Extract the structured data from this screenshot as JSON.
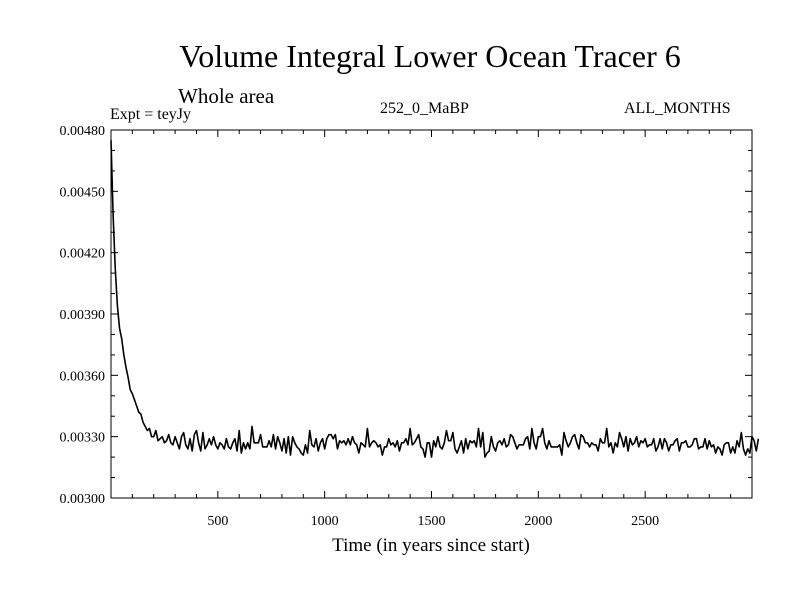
{
  "title": "Volume Integral Lower Ocean Tracer 6",
  "subtitle": "Whole area",
  "experiment": "Expt = teyJy",
  "period": "252_0_MaBP",
  "months": "ALL_MONTHS",
  "chart_data": {
    "type": "line",
    "title": "Volume Integral Lower Ocean Tracer 6",
    "xlabel": "Time (in years since start)",
    "ylabel": "",
    "xlim": [
      0,
      3000
    ],
    "ylim": [
      0.003,
      0.0048
    ],
    "x_ticks": [
      500,
      1000,
      1500,
      2000,
      2500
    ],
    "x_tick_labels": [
      "500",
      "1000",
      "1500",
      "2000",
      "2500"
    ],
    "y_ticks": [
      0.003,
      0.0033,
      0.0036,
      0.0039,
      0.0042,
      0.0045,
      0.0048
    ],
    "y_tick_labels": [
      "0.00300",
      "0.00330",
      "0.00360",
      "0.00390",
      "0.00420",
      "0.00450",
      "0.00480"
    ],
    "series": [
      {
        "name": "Lower Ocean Tracer 6",
        "step_years": 10,
        "values": [
          0.00475,
          0.00438,
          0.00412,
          0.00394,
          0.00383,
          0.00378,
          0.0037,
          0.00364,
          0.00359,
          0.00353,
          0.00351,
          0.00348,
          0.00345,
          0.00342,
          0.00341,
          0.00337,
          0.00335,
          0.00333,
          0.00334,
          0.0033,
          0.0033,
          0.00333,
          0.00328,
          0.00329,
          0.0033,
          0.00327,
          0.00328,
          0.00331,
          0.00327,
          0.00326,
          0.0033,
          0.00327,
          0.00324,
          0.0033,
          0.00332,
          0.00326,
          0.00324,
          0.00329,
          0.00323,
          0.00331,
          0.00333,
          0.00327,
          0.00323,
          0.00332,
          0.00324,
          0.00326,
          0.00329,
          0.00326,
          0.0033,
          0.00326,
          0.00324,
          0.00327,
          0.00326,
          0.00324,
          0.00329,
          0.00325,
          0.00324,
          0.00327,
          0.00329,
          0.00323,
          0.00333,
          0.00322,
          0.00327,
          0.00324,
          0.00327,
          0.00324,
          0.00335,
          0.00327,
          0.00327,
          0.00327,
          0.00331,
          0.00325,
          0.00325,
          0.00325,
          0.00328,
          0.00325,
          0.00331,
          0.00324,
          0.0033,
          0.00327,
          0.00323,
          0.00329,
          0.00322,
          0.0033,
          0.00321,
          0.0033,
          0.00327,
          0.00325,
          0.00324,
          0.00322,
          0.00321,
          0.00326,
          0.00322,
          0.00333,
          0.00326,
          0.00325,
          0.00329,
          0.00323,
          0.00327,
          0.00329,
          0.00324,
          0.00329,
          0.00331,
          0.00331,
          0.00329,
          0.00331,
          0.00324,
          0.00328,
          0.00327,
          0.00328,
          0.00326,
          0.00329,
          0.00326,
          0.0033,
          0.00327,
          0.00326,
          0.00322,
          0.00327,
          0.00326,
          0.00325,
          0.00334,
          0.00325,
          0.00327,
          0.00328,
          0.00327,
          0.00325,
          0.00326,
          0.00321,
          0.00325,
          0.00325,
          0.00329,
          0.00326,
          0.00327,
          0.00325,
          0.00328,
          0.00323,
          0.00327,
          0.00327,
          0.00329,
          0.00326,
          0.00334,
          0.00326,
          0.00327,
          0.00329,
          0.00331,
          0.00325,
          0.00324,
          0.0032,
          0.00327,
          0.00327,
          0.0032,
          0.00328,
          0.00325,
          0.0033,
          0.00325,
          0.00324,
          0.00327,
          0.00333,
          0.00328,
          0.00328,
          0.00332,
          0.00324,
          0.00322,
          0.00325,
          0.00328,
          0.00322,
          0.00329,
          0.00324,
          0.00328,
          0.00327,
          0.00328,
          0.00325,
          0.00334,
          0.00325,
          0.00332,
          0.0032,
          0.00322,
          0.00323,
          0.0033,
          0.00325,
          0.00323,
          0.00327,
          0.00328,
          0.00326,
          0.00329,
          0.00325,
          0.00326,
          0.00331,
          0.0033,
          0.00327,
          0.00324,
          0.00326,
          0.00326,
          0.00326,
          0.00329,
          0.0033,
          0.00324,
          0.00334,
          0.00327,
          0.00324,
          0.0033,
          0.0033,
          0.00334,
          0.00327,
          0.00324,
          0.00328,
          0.00325,
          0.00325,
          0.00325,
          0.00325,
          0.00326,
          0.00321,
          0.00332,
          0.00328,
          0.00325,
          0.00327,
          0.0033,
          0.00331,
          0.00327,
          0.00324,
          0.00331,
          0.0033,
          0.00327,
          0.00327,
          0.00325,
          0.00327,
          0.00326,
          0.00326,
          0.00323,
          0.00329,
          0.00327,
          0.00327,
          0.00334,
          0.00325,
          0.00327,
          0.00322,
          0.00327,
          0.00325,
          0.00332,
          0.00329,
          0.00325,
          0.0033,
          0.00323,
          0.00329,
          0.00326,
          0.00327,
          0.0033,
          0.00325,
          0.00328,
          0.00327,
          0.00329,
          0.00325,
          0.00326,
          0.00326,
          0.00329,
          0.00323,
          0.00325,
          0.00329,
          0.00324,
          0.00329,
          0.00327,
          0.00323,
          0.00326,
          0.00326,
          0.00328,
          0.00329,
          0.00323,
          0.00327,
          0.00327,
          0.00328,
          0.00325,
          0.00325,
          0.00326,
          0.00329,
          0.00329,
          0.00324,
          0.00325,
          0.00325,
          0.00329,
          0.00324,
          0.00328,
          0.00325,
          0.00326,
          0.00322,
          0.00325,
          0.00324,
          0.00321,
          0.00326,
          0.00327,
          0.00327,
          0.00322,
          0.00325,
          0.00322,
          0.00328,
          0.00325,
          0.00332,
          0.00324,
          0.00321,
          0.00324,
          0.00322,
          0.0033,
          0.00328,
          0.00323,
          0.00329
        ]
      }
    ]
  }
}
